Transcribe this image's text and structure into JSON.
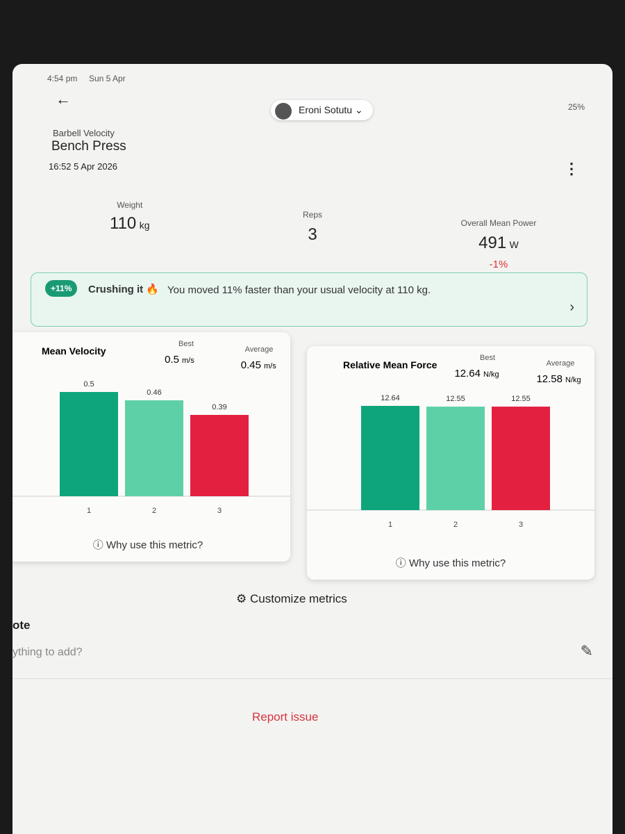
{
  "status_bar": {
    "time": "4:54 pm",
    "date": "Sun 5 Apr",
    "battery": "25%"
  },
  "header": {
    "user": "Eroni Sotutu",
    "category": "Barbell Velocity",
    "exercise": "Bench Press",
    "timestamp": "16:52 5 Apr 2026"
  },
  "stats": [
    {
      "label": "Weight",
      "value": "110",
      "unit": "kg"
    },
    {
      "label": "Reps",
      "value": "3"
    },
    {
      "label": "Overall Mean Power",
      "value": "491",
      "unit": "W",
      "change": "-1%"
    }
  ],
  "banner": {
    "badge": "+11%",
    "headline": "Crushing it 🔥",
    "message": "You moved 11% faster than your usual velocity at 110 kg."
  },
  "metrics": [
    {
      "title": "Mean Velocity",
      "best_label": "Best",
      "best": 0.5,
      "average_label": "Average",
      "average": 0.45,
      "unit": "m/s",
      "categories": [
        "1",
        "2",
        "3"
      ],
      "values": [
        0.5,
        0.46,
        0.39
      ],
      "colors": [
        "#0fa57b",
        "#5dd0a8",
        "#e3203f"
      ],
      "help": "Why use this metric?"
    },
    {
      "title": "Relative Mean Force",
      "best_label": "Best",
      "best": 12.64,
      "average_label": "Average",
      "average": 12.58,
      "unit": "N/kg",
      "categories": [
        "1",
        "2",
        "3"
      ],
      "values": [
        12.64,
        12.55,
        12.55
      ],
      "colors": [
        "#0fa57b",
        "#5dd0a8",
        "#e3203f"
      ],
      "help": "Why use this metric?"
    }
  ],
  "customize": "Customize metrics",
  "note": {
    "title": "ote",
    "placeholder": "ything to add?"
  },
  "report": "Report issue"
}
